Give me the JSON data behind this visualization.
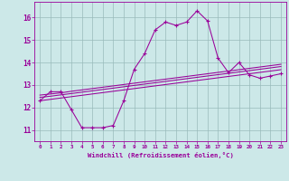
{
  "xlabel": "Windchill (Refroidissement éolien,°C)",
  "xlim": [
    -0.5,
    23.5
  ],
  "ylim": [
    10.5,
    16.7
  ],
  "yticks": [
    11,
    12,
    13,
    14,
    15,
    16
  ],
  "xticks": [
    0,
    1,
    2,
    3,
    4,
    5,
    6,
    7,
    8,
    9,
    10,
    11,
    12,
    13,
    14,
    15,
    16,
    17,
    18,
    19,
    20,
    21,
    22,
    23
  ],
  "bg_color": "#cce8e8",
  "line_color": "#990099",
  "grid_color": "#99bbbb",
  "series": {
    "main": [
      12.3,
      12.7,
      12.7,
      11.9,
      11.1,
      11.1,
      11.1,
      11.2,
      12.3,
      13.7,
      14.4,
      15.45,
      15.8,
      15.65,
      15.8,
      16.3,
      15.85,
      14.2,
      13.55,
      14.0,
      13.45,
      13.3,
      13.4,
      13.5
    ],
    "line1": [
      12.55,
      12.6,
      12.65,
      12.72,
      12.78,
      12.84,
      12.9,
      12.96,
      13.02,
      13.08,
      13.14,
      13.2,
      13.26,
      13.32,
      13.38,
      13.44,
      13.5,
      13.56,
      13.62,
      13.68,
      13.74,
      13.8,
      13.86,
      13.92
    ],
    "line2": [
      12.45,
      12.5,
      12.56,
      12.62,
      12.68,
      12.74,
      12.8,
      12.86,
      12.92,
      12.98,
      13.04,
      13.1,
      13.16,
      13.22,
      13.28,
      13.34,
      13.4,
      13.46,
      13.52,
      13.58,
      13.64,
      13.7,
      13.76,
      13.82
    ],
    "line3": [
      12.3,
      12.36,
      12.42,
      12.48,
      12.54,
      12.6,
      12.66,
      12.72,
      12.78,
      12.84,
      12.9,
      12.96,
      13.02,
      13.08,
      13.14,
      13.2,
      13.26,
      13.32,
      13.38,
      13.44,
      13.5,
      13.56,
      13.62,
      13.68
    ]
  }
}
